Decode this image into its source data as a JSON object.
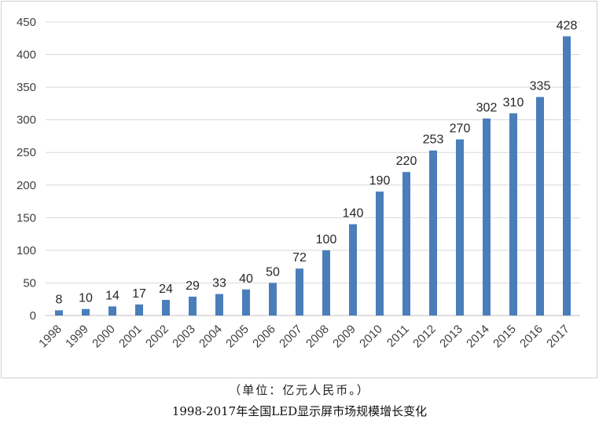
{
  "chart_data": {
    "type": "bar",
    "categories": [
      "1998",
      "1999",
      "2000",
      "2001",
      "2002",
      "2003",
      "2004",
      "2005",
      "2006",
      "2007",
      "2008",
      "2009",
      "2010",
      "2011",
      "2012",
      "2013",
      "2014",
      "2015",
      "2016",
      "2017"
    ],
    "values": [
      8,
      10,
      14,
      17,
      24,
      29,
      33,
      40,
      50,
      72,
      100,
      140,
      190,
      220,
      253,
      270,
      302,
      310,
      335,
      428
    ],
    "ylim": [
      0,
      450
    ],
    "yticks": [
      0,
      50,
      100,
      150,
      200,
      250,
      300,
      350,
      400,
      450
    ],
    "grid": true,
    "legend": "none",
    "bar_color": "#4a7ebb",
    "grid_color": "#d9d9d9"
  },
  "unit_note": "（单位：亿元人民币。）",
  "caption": "1998-2017年全国LED显示屏市场规模增长变化"
}
